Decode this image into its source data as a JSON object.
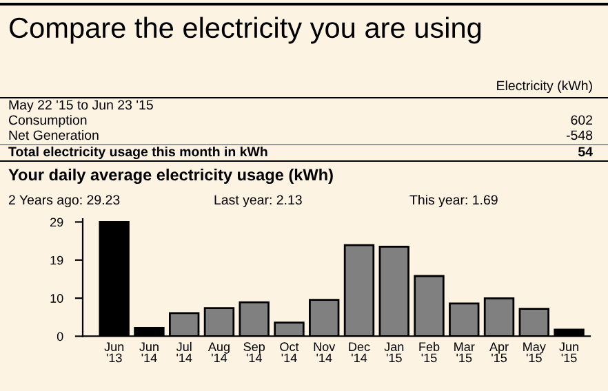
{
  "chart_data": {
    "type": "bar",
    "title": "Compare the electricity you are using",
    "subtitle": "Your daily average electricity usage (kWh)",
    "annotations": [
      "Electricity (kWh)",
      "May 22 '15 to Jun 23 '15",
      "Consumption",
      "602",
      "Net Generation",
      "-548",
      "Total electricity usage this month in kWh",
      "54",
      "2 Years ago: 29.23",
      "Last year: 2.13",
      "This year: 1.69"
    ],
    "categories": [
      "Jun\n'13",
      "Jun\n'14",
      "Jul\n'14",
      "Aug\n'14",
      "Sep\n'14",
      "Oct\n'14",
      "Nov\n'14",
      "Dec\n'14",
      "Jan\n'15",
      "Feb\n'15",
      "Mar\n'15",
      "Apr\n'15",
      "May\n'15",
      "Jun\n'15"
    ],
    "values": [
      29.23,
      2.13,
      5.9,
      7.2,
      8.7,
      3.5,
      9.3,
      23.3,
      22.9,
      15.4,
      8.4,
      9.7,
      7.0,
      1.69
    ],
    "colors": [
      "#000000",
      "#000000",
      "#808080",
      "#808080",
      "#808080",
      "#808080",
      "#808080",
      "#808080",
      "#808080",
      "#808080",
      "#808080",
      "#808080",
      "#808080",
      "#000000"
    ],
    "ylim": [
      0,
      30
    ],
    "yticks": [
      0,
      {
        "value": 9.74,
        "label": "10"
      },
      {
        "value": 19.49,
        "label": "19"
      },
      {
        "value": 29.23,
        "label": "29"
      }
    ],
    "grid": false,
    "legend": false
  }
}
